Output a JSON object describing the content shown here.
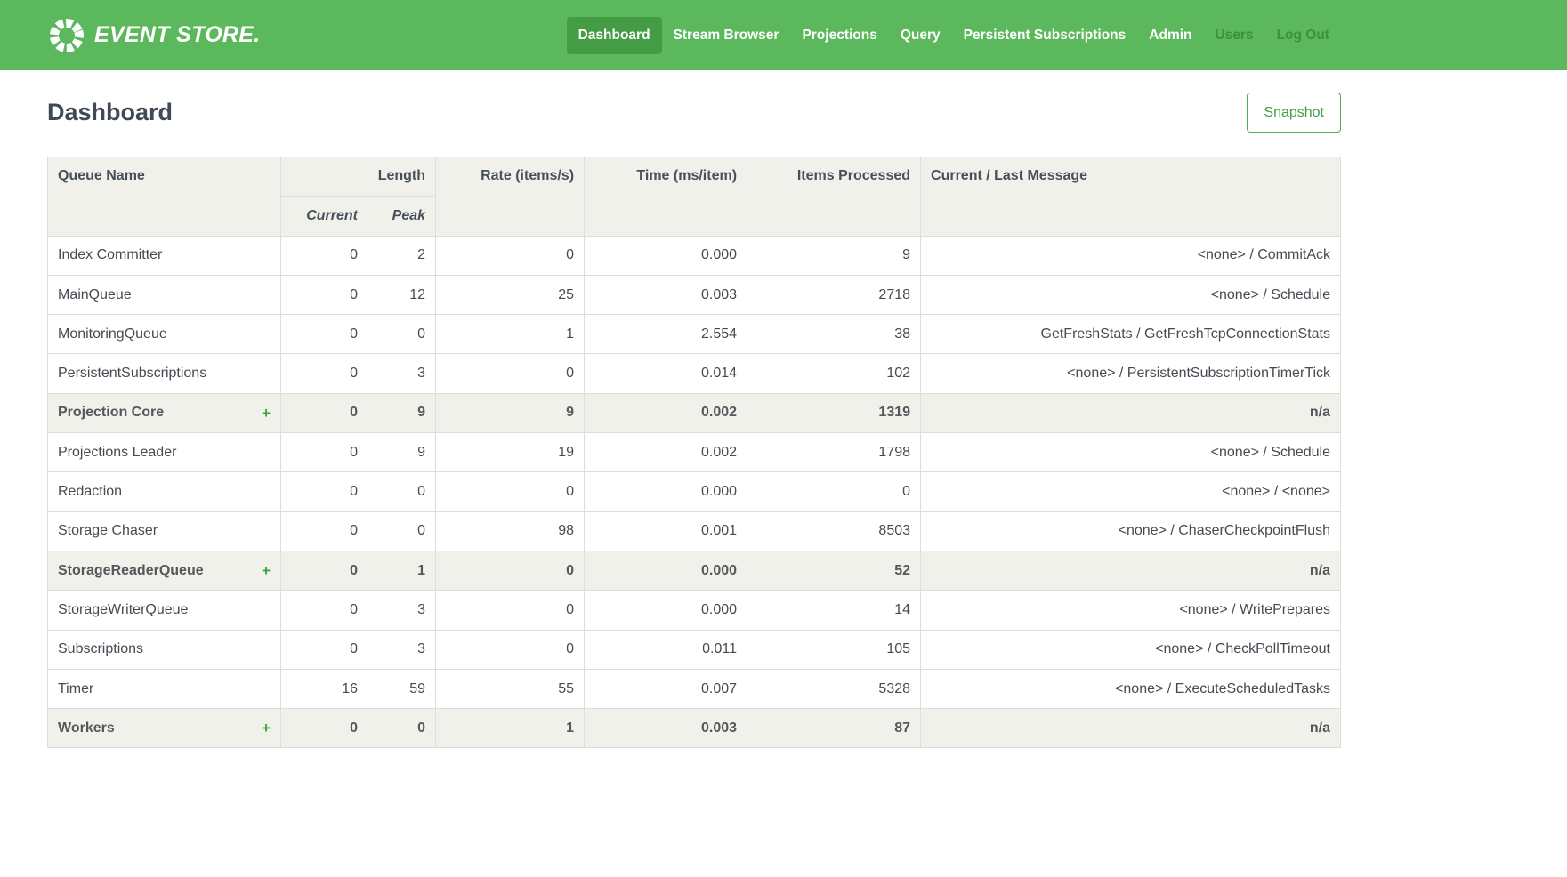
{
  "nav": {
    "brand": "EVENT STORE.",
    "items": [
      {
        "label": "Dashboard",
        "active": true,
        "muted": false
      },
      {
        "label": "Stream Browser",
        "active": false,
        "muted": false
      },
      {
        "label": "Projections",
        "active": false,
        "muted": false
      },
      {
        "label": "Query",
        "active": false,
        "muted": false
      },
      {
        "label": "Persistent Subscriptions",
        "active": false,
        "muted": false
      },
      {
        "label": "Admin",
        "active": false,
        "muted": false
      },
      {
        "label": "Users",
        "active": false,
        "muted": true
      },
      {
        "label": "Log Out",
        "active": false,
        "muted": true
      }
    ]
  },
  "page": {
    "title": "Dashboard",
    "snapshot_label": "Snapshot"
  },
  "table": {
    "headers": {
      "queue_name": "Queue Name",
      "length": "Length",
      "current": "Current",
      "peak": "Peak",
      "rate": "Rate (items/s)",
      "time": "Time (ms/item)",
      "items_processed": "Items Processed",
      "message": "Current / Last Message"
    },
    "rows": [
      {
        "name": "Index Committer",
        "group": false,
        "current": "0",
        "peak": "2",
        "rate": "0",
        "time": "0.000",
        "items": "9",
        "message": "<none> / CommitAck"
      },
      {
        "name": "MainQueue",
        "group": false,
        "current": "0",
        "peak": "12",
        "rate": "25",
        "time": "0.003",
        "items": "2718",
        "message": "<none> / Schedule"
      },
      {
        "name": "MonitoringQueue",
        "group": false,
        "current": "0",
        "peak": "0",
        "rate": "1",
        "time": "2.554",
        "items": "38",
        "message": "GetFreshStats / GetFreshTcpConnectionStats"
      },
      {
        "name": "PersistentSubscriptions",
        "group": false,
        "current": "0",
        "peak": "3",
        "rate": "0",
        "time": "0.014",
        "items": "102",
        "message": "<none> / PersistentSubscriptionTimerTick"
      },
      {
        "name": "Projection Core",
        "group": true,
        "current": "0",
        "peak": "9",
        "rate": "9",
        "time": "0.002",
        "items": "1319",
        "message": "n/a"
      },
      {
        "name": "Projections Leader",
        "group": false,
        "current": "0",
        "peak": "9",
        "rate": "19",
        "time": "0.002",
        "items": "1798",
        "message": "<none> / Schedule"
      },
      {
        "name": "Redaction",
        "group": false,
        "current": "0",
        "peak": "0",
        "rate": "0",
        "time": "0.000",
        "items": "0",
        "message": "<none> / <none>"
      },
      {
        "name": "Storage Chaser",
        "group": false,
        "current": "0",
        "peak": "0",
        "rate": "98",
        "time": "0.001",
        "items": "8503",
        "message": "<none> / ChaserCheckpointFlush"
      },
      {
        "name": "StorageReaderQueue",
        "group": true,
        "current": "0",
        "peak": "1",
        "rate": "0",
        "time": "0.000",
        "items": "52",
        "message": "n/a"
      },
      {
        "name": "StorageWriterQueue",
        "group": false,
        "current": "0",
        "peak": "3",
        "rate": "0",
        "time": "0.000",
        "items": "14",
        "message": "<none> / WritePrepares"
      },
      {
        "name": "Subscriptions",
        "group": false,
        "current": "0",
        "peak": "3",
        "rate": "0",
        "time": "0.011",
        "items": "105",
        "message": "<none> / CheckPollTimeout"
      },
      {
        "name": "Timer",
        "group": false,
        "current": "16",
        "peak": "59",
        "rate": "55",
        "time": "0.007",
        "items": "5328",
        "message": "<none> / ExecuteScheduledTasks"
      },
      {
        "name": "Workers",
        "group": true,
        "current": "0",
        "peak": "0",
        "rate": "1",
        "time": "0.003",
        "items": "87",
        "message": "n/a"
      }
    ]
  },
  "icons": {
    "brand_ring": "segmented-ring-icon",
    "expand": "plus-icon"
  },
  "colors": {
    "navbar_green": "#5cb85c",
    "active_item_green": "#449d44",
    "muted_link_green": "#3a9140",
    "accent_green": "#449d44",
    "header_bg": "#f0f1ea",
    "border": "#dddddb",
    "text": "#454b52",
    "title_text": "#414a53"
  }
}
